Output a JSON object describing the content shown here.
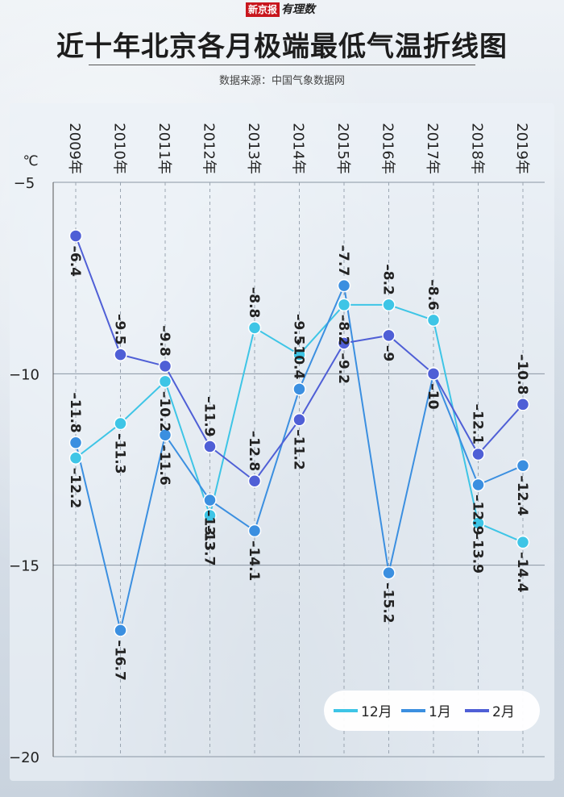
{
  "header": {
    "logo_brand": "新京报",
    "logo_suffix": "有理数",
    "title": "近十年北京各月极端最低气温折线图",
    "source": "数据来源：中国气象数据网"
  },
  "chart_data": {
    "type": "line",
    "title": "近十年北京各月极端最低气温折线图",
    "xlabel": "",
    "ylabel": "℃",
    "categories": [
      "2009年",
      "2010年",
      "2011年",
      "2012年",
      "2013年",
      "2014年",
      "2015年",
      "2016年",
      "2017年",
      "2018年",
      "2019年"
    ],
    "ylim": [
      -20,
      -5
    ],
    "yticks": [
      -5,
      -10,
      -15,
      -20
    ],
    "grid": true,
    "legend_position": "bottom-right",
    "series": [
      {
        "name": "12月",
        "color": "#3ec5e6",
        "values": [
          -12.2,
          -11.3,
          -10.2,
          -13.7,
          -8.8,
          -9.5,
          -8.2,
          -8.2,
          -8.6,
          -13.9,
          -14.4
        ]
      },
      {
        "name": "1月",
        "color": "#3b8fe0",
        "values": [
          -11.8,
          -16.7,
          -11.6,
          -13.3,
          -14.1,
          -10.4,
          -7.7,
          -15.2,
          -10,
          -12.9,
          -12.4
        ]
      },
      {
        "name": "2月",
        "color": "#4f5fd6",
        "values": [
          -6.4,
          -9.5,
          -9.8,
          -11.9,
          -12.8,
          -11.2,
          -9.2,
          -9,
          -10,
          -12.1,
          -10.8
        ]
      }
    ],
    "data_labels": [
      [
        "-12.2",
        "-11.3",
        "-10.2",
        "-13.7",
        "-8.8",
        "-9.5",
        "-8.2",
        "-8.2",
        "-8.6",
        "-13.9",
        "-14.4"
      ],
      [
        "-11.8",
        "-16.7",
        "-11.6",
        "-13.3",
        "-14.1",
        "-10.4",
        "-7.7",
        "-15.2",
        "-10",
        "-12.9",
        "-12.4"
      ],
      [
        "-6.4",
        "-9.5",
        "-9.8",
        "-11.9",
        "-12.8",
        "-11.2",
        "-9.2",
        "-9",
        "-10",
        "-12.1",
        "-10.8"
      ]
    ],
    "label_positions": [
      [
        "below",
        "below",
        "below",
        "below",
        "above",
        "above",
        "below",
        "above",
        "above",
        "below",
        "below"
      ],
      [
        "above",
        "below",
        "below",
        "below",
        "below",
        "above",
        "above",
        "below",
        "below",
        "below",
        "below"
      ],
      [
        "below",
        "above",
        "above",
        "above",
        "above",
        "below",
        "below",
        "below",
        "below",
        "above",
        "above"
      ]
    ]
  }
}
